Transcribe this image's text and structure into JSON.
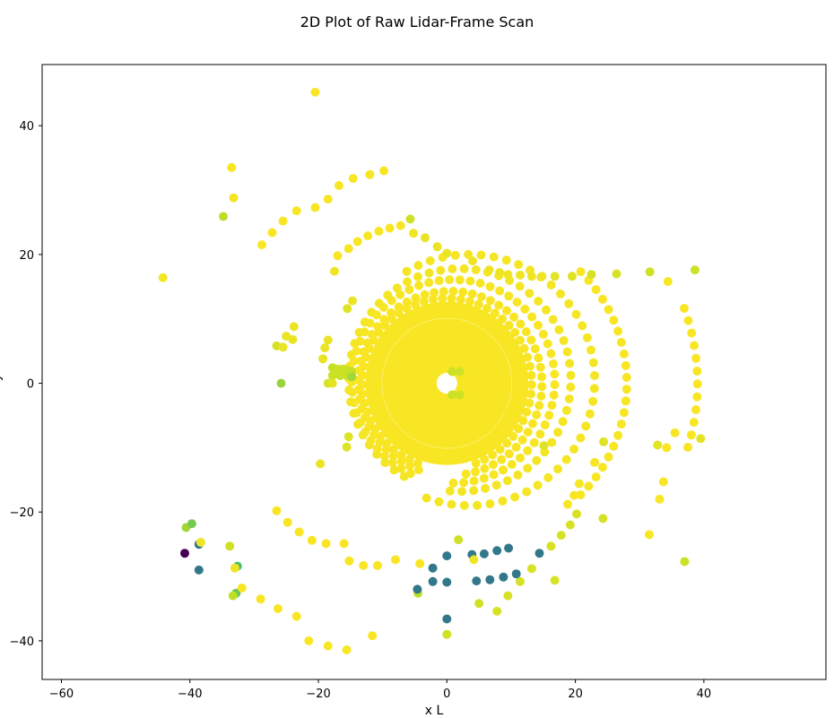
{
  "chart_data": {
    "type": "scatter",
    "title": "2D Plot of Raw Lidar-Frame Scan",
    "xlabel": "x L",
    "ylabel": "y L",
    "xlim": [
      -63,
      59
    ],
    "ylim": [
      -46,
      49.5
    ],
    "xticks": [
      -60,
      -40,
      -20,
      0,
      20,
      40
    ],
    "yticks": [
      -40,
      -20,
      0,
      20,
      40
    ],
    "xtick_labels": [
      "−60",
      "−40",
      "−20",
      "0",
      "20",
      "40"
    ],
    "ytick_labels": [
      "−40",
      "−20",
      "0",
      "20",
      "40"
    ],
    "grid": false,
    "colormap": [
      "#440154",
      "#31688e",
      "#35b779",
      "#bddf26",
      "#fde725"
    ],
    "dense_rings": [
      {
        "cx": 0,
        "cy": 0,
        "r": 2.3,
        "density": 16
      },
      {
        "cx": 0,
        "cy": 0,
        "r": 3.4,
        "density": 22
      },
      {
        "cx": 0,
        "cy": 0,
        "r": 4.6,
        "density": 28
      },
      {
        "cx": 0,
        "cy": 0,
        "r": 5.8,
        "density": 34
      },
      {
        "cx": 0,
        "cy": 0,
        "r": 7.0,
        "density": 40
      },
      {
        "cx": 0,
        "cy": 0,
        "r": 8.2,
        "density": 46
      },
      {
        "cx": 0,
        "cy": 0,
        "r": 9.4,
        "density": 52
      },
      {
        "cx": 0,
        "cy": 0,
        "r": 10.8,
        "density": 56
      },
      {
        "cx": 0,
        "cy": 0,
        "r": 12.0,
        "density": 60
      }
    ],
    "rings": [
      {
        "cx": 0,
        "cy": 0,
        "r": 13.2,
        "a0": -70,
        "a1": 250,
        "n": 52,
        "c": 0.98
      },
      {
        "cx": 0.5,
        "cy": 0,
        "r": 14.3,
        "a0": -80,
        "a1": 250,
        "n": 56,
        "c": 0.98
      },
      {
        "cx": 1,
        "cy": 0.3,
        "r": 15.8,
        "a0": -90,
        "a1": 245,
        "n": 58,
        "c": 0.98
      },
      {
        "cx": 2,
        "cy": 0.5,
        "r": 17.3,
        "a0": -95,
        "a1": 240,
        "n": 56,
        "c": 0.97
      },
      {
        "cx": 3.5,
        "cy": 0.5,
        "r": 19.5,
        "a0": -110,
        "a1": 120,
        "n": 40,
        "c": 0.97
      },
      {
        "cx": 3.5,
        "cy": 0,
        "r": 24.5,
        "a0": -45,
        "a1": 45,
        "n": 22,
        "c": 0.98
      },
      {
        "cx": 5,
        "cy": 0,
        "r": 34.0,
        "a0": -17,
        "a1": 20,
        "n": 12,
        "c": 0.98
      }
    ],
    "points": [
      {
        "x": -20.5,
        "y": 45.2,
        "c": 0.98
      },
      {
        "x": -44.2,
        "y": 16.4,
        "c": 0.96
      },
      {
        "x": -33.5,
        "y": 33.5,
        "c": 0.98
      },
      {
        "x": -33.2,
        "y": 28.8,
        "c": 0.96
      },
      {
        "x": -34.8,
        "y": 25.9,
        "c": 0.75
      },
      {
        "x": -28.8,
        "y": 21.5,
        "c": 0.98
      },
      {
        "x": -27.2,
        "y": 23.4,
        "c": 0.98
      },
      {
        "x": -25.5,
        "y": 25.2,
        "c": 0.98
      },
      {
        "x": -23.4,
        "y": 26.8,
        "c": 0.98
      },
      {
        "x": -20.5,
        "y": 27.3,
        "c": 0.98
      },
      {
        "x": -18.5,
        "y": 28.6,
        "c": 0.98
      },
      {
        "x": -16.8,
        "y": 30.7,
        "c": 0.98
      },
      {
        "x": -14.6,
        "y": 31.8,
        "c": 0.98
      },
      {
        "x": -12.0,
        "y": 32.4,
        "c": 0.98
      },
      {
        "x": -9.8,
        "y": 33.0,
        "c": 0.98
      },
      {
        "x": -17.5,
        "y": 17.4,
        "c": 0.95
      },
      {
        "x": -17.0,
        "y": 19.8,
        "c": 0.98
      },
      {
        "x": -15.3,
        "y": 20.9,
        "c": 0.98
      },
      {
        "x": -13.9,
        "y": 22.0,
        "c": 0.98
      },
      {
        "x": -12.3,
        "y": 22.9,
        "c": 0.98
      },
      {
        "x": -10.6,
        "y": 23.6,
        "c": 0.98
      },
      {
        "x": -8.9,
        "y": 24.1,
        "c": 0.98
      },
      {
        "x": -7.2,
        "y": 24.5,
        "c": 0.98
      },
      {
        "x": -5.7,
        "y": 25.5,
        "c": 0.82
      },
      {
        "x": -5.2,
        "y": 23.3,
        "c": 0.95
      },
      {
        "x": -3.4,
        "y": 22.6,
        "c": 0.92
      },
      {
        "x": -1.5,
        "y": 21.2,
        "c": 0.92
      },
      {
        "x": 0.0,
        "y": 20.2,
        "c": 0.92
      },
      {
        "x": -25.8,
        "y": 0.0,
        "c": 0.68
      },
      {
        "x": -26.5,
        "y": 5.8,
        "c": 0.85
      },
      {
        "x": -25.5,
        "y": 5.6,
        "c": 0.92
      },
      {
        "x": -25.0,
        "y": 7.3,
        "c": 0.92
      },
      {
        "x": -24.0,
        "y": 6.8,
        "c": 0.92
      },
      {
        "x": -23.8,
        "y": 8.8,
        "c": 0.92
      },
      {
        "x": -19.7,
        "y": -12.5,
        "c": 0.92
      },
      {
        "x": -15.5,
        "y": 11.6,
        "c": 0.88
      },
      {
        "x": -14.7,
        "y": 12.8,
        "c": 0.92
      },
      {
        "x": -17.8,
        "y": 2.4,
        "c": 0.78
      },
      {
        "x": -17.0,
        "y": 2.2,
        "c": 0.8
      },
      {
        "x": -16.2,
        "y": 2.2,
        "c": 0.8
      },
      {
        "x": -15.4,
        "y": 2.0,
        "c": 0.8
      },
      {
        "x": -14.8,
        "y": 1.8,
        "c": 0.78
      },
      {
        "x": -17.8,
        "y": 1.2,
        "c": 0.8
      },
      {
        "x": -16.6,
        "y": 1.2,
        "c": 0.8
      },
      {
        "x": -15.4,
        "y": 1.2,
        "c": 0.78
      },
      {
        "x": -14.8,
        "y": 1.0,
        "c": 0.7
      },
      {
        "x": -18.5,
        "y": 0.0,
        "c": 0.85
      },
      {
        "x": -17.8,
        "y": 0.0,
        "c": 0.9
      },
      {
        "x": -19.3,
        "y": 3.8,
        "c": 0.92
      },
      {
        "x": -19.0,
        "y": 5.5,
        "c": 0.92
      },
      {
        "x": -18.5,
        "y": 6.7,
        "c": 0.92
      },
      {
        "x": -15.3,
        "y": -8.3,
        "c": 0.88
      },
      {
        "x": -15.6,
        "y": -9.9,
        "c": 0.88
      },
      {
        "x": 2.0,
        "y": 1.8,
        "c": 0.82
      },
      {
        "x": 0.8,
        "y": 1.8,
        "c": 0.82
      },
      {
        "x": 0.8,
        "y": -1.8,
        "c": 0.82
      },
      {
        "x": 2.0,
        "y": -1.8,
        "c": 0.82
      },
      {
        "x": 4.0,
        "y": 19.0,
        "c": 0.95
      },
      {
        "x": 6.6,
        "y": 17.6,
        "c": 0.95
      },
      {
        "x": 8.2,
        "y": 17.2,
        "c": 0.95
      },
      {
        "x": 9.5,
        "y": 16.9,
        "c": 0.95
      },
      {
        "x": 11.4,
        "y": 16.8,
        "c": 0.95
      },
      {
        "x": 13.2,
        "y": 16.6,
        "c": 0.95
      },
      {
        "x": 14.8,
        "y": 16.6,
        "c": 0.95
      },
      {
        "x": 16.8,
        "y": 16.6,
        "c": 0.9
      },
      {
        "x": 19.5,
        "y": 16.6,
        "c": 0.88
      },
      {
        "x": 22.5,
        "y": 16.9,
        "c": 0.85
      },
      {
        "x": 26.4,
        "y": 17.0,
        "c": 0.85
      },
      {
        "x": 31.6,
        "y": 17.3,
        "c": 0.82
      },
      {
        "x": 38.6,
        "y": 17.6,
        "c": 0.8
      },
      {
        "x": 34.4,
        "y": 15.8,
        "c": 0.98
      },
      {
        "x": 32.8,
        "y": -9.6,
        "c": 0.9
      },
      {
        "x": 39.5,
        "y": -8.6,
        "c": 0.9
      },
      {
        "x": 35.5,
        "y": -7.7,
        "c": 0.98
      },
      {
        "x": 34.2,
        "y": -10.0,
        "c": 0.98
      },
      {
        "x": 33.7,
        "y": -15.3,
        "c": 0.98
      },
      {
        "x": 33.1,
        "y": -18.0,
        "c": 0.98
      },
      {
        "x": 31.5,
        "y": -23.5,
        "c": 0.98
      },
      {
        "x": 37.0,
        "y": -27.7,
        "c": 0.8
      },
      {
        "x": 24.3,
        "y": -21.0,
        "c": 0.85
      },
      {
        "x": 20.2,
        "y": -20.3,
        "c": 0.85
      },
      {
        "x": 19.2,
        "y": -22.0,
        "c": 0.85
      },
      {
        "x": 17.8,
        "y": -23.6,
        "c": 0.85
      },
      {
        "x": 16.2,
        "y": -25.3,
        "c": 0.85
      },
      {
        "x": 16.8,
        "y": -30.6,
        "c": 0.85
      },
      {
        "x": 13.2,
        "y": -28.8,
        "c": 0.85
      },
      {
        "x": 11.4,
        "y": -30.8,
        "c": 0.85
      },
      {
        "x": 9.5,
        "y": -33.0,
        "c": 0.85
      },
      {
        "x": 7.8,
        "y": -35.4,
        "c": 0.85
      },
      {
        "x": 5.0,
        "y": -34.2,
        "c": 0.82
      },
      {
        "x": 0.0,
        "y": -39.0,
        "c": 0.82
      },
      {
        "x": -4.5,
        "y": -32.6,
        "c": 0.75
      },
      {
        "x": 24.4,
        "y": -9.1,
        "c": 0.88
      },
      {
        "x": 23.0,
        "y": -12.3,
        "c": 0.98
      },
      {
        "x": 20.6,
        "y": -15.6,
        "c": 0.98
      },
      {
        "x": 19.8,
        "y": -17.4,
        "c": 0.98
      },
      {
        "x": 18.8,
        "y": -18.8,
        "c": 0.98
      },
      {
        "x": 15.1,
        "y": -9.7,
        "c": 0.88
      },
      {
        "x": -4.6,
        "y": -32.0,
        "c": 0.3
      },
      {
        "x": -2.2,
        "y": -28.7,
        "c": 0.3
      },
      {
        "x": -2.2,
        "y": -30.8,
        "c": 0.3
      },
      {
        "x": 0.0,
        "y": -26.8,
        "c": 0.3
      },
      {
        "x": 0.0,
        "y": -30.9,
        "c": 0.3
      },
      {
        "x": 0.0,
        "y": -36.6,
        "c": 0.3
      },
      {
        "x": 3.9,
        "y": -26.6,
        "c": 0.3
      },
      {
        "x": 4.6,
        "y": -30.7,
        "c": 0.3
      },
      {
        "x": 5.8,
        "y": -26.5,
        "c": 0.3
      },
      {
        "x": 6.7,
        "y": -30.5,
        "c": 0.3
      },
      {
        "x": 7.8,
        "y": -26.0,
        "c": 0.3
      },
      {
        "x": 8.8,
        "y": -30.1,
        "c": 0.3
      },
      {
        "x": 9.6,
        "y": -25.6,
        "c": 0.3
      },
      {
        "x": 10.8,
        "y": -29.6,
        "c": 0.3
      },
      {
        "x": 14.4,
        "y": -26.4,
        "c": 0.3
      },
      {
        "x": 4.2,
        "y": -27.4,
        "c": 0.95
      },
      {
        "x": 1.8,
        "y": -24.3,
        "c": 0.82
      },
      {
        "x": -40.8,
        "y": -26.4,
        "c": 0.0
      },
      {
        "x": -38.6,
        "y": -29.0,
        "c": 0.3
      },
      {
        "x": -40.6,
        "y": -22.4,
        "c": 0.7
      },
      {
        "x": -39.7,
        "y": -21.8,
        "c": 0.62
      },
      {
        "x": -38.6,
        "y": -25.0,
        "c": 0.3
      },
      {
        "x": -38.3,
        "y": -24.7,
        "c": 0.95
      },
      {
        "x": -33.8,
        "y": -25.3,
        "c": 0.82
      },
      {
        "x": -32.6,
        "y": -28.4,
        "c": 0.55
      },
      {
        "x": -33.0,
        "y": -28.7,
        "c": 0.95
      },
      {
        "x": -32.8,
        "y": -32.6,
        "c": 0.6
      },
      {
        "x": -33.3,
        "y": -33.0,
        "c": 0.75
      },
      {
        "x": -31.9,
        "y": -31.8,
        "c": 0.98
      },
      {
        "x": -29.0,
        "y": -33.5,
        "c": 0.98
      },
      {
        "x": -26.3,
        "y": -35.0,
        "c": 0.98
      },
      {
        "x": -23.4,
        "y": -36.2,
        "c": 0.98
      },
      {
        "x": -21.5,
        "y": -40.0,
        "c": 0.98
      },
      {
        "x": -18.5,
        "y": -40.8,
        "c": 0.98
      },
      {
        "x": -15.6,
        "y": -41.4,
        "c": 0.98
      },
      {
        "x": -11.6,
        "y": -39.2,
        "c": 0.98
      },
      {
        "x": -26.5,
        "y": -19.8,
        "c": 0.98
      },
      {
        "x": -24.8,
        "y": -21.6,
        "c": 0.98
      },
      {
        "x": -23.0,
        "y": -23.1,
        "c": 0.98
      },
      {
        "x": -21.0,
        "y": -24.4,
        "c": 0.98
      },
      {
        "x": -18.8,
        "y": -24.9,
        "c": 0.98
      },
      {
        "x": -16.0,
        "y": -24.9,
        "c": 0.98
      },
      {
        "x": -15.2,
        "y": -27.6,
        "c": 0.98
      },
      {
        "x": -13.0,
        "y": -28.3,
        "c": 0.98
      },
      {
        "x": -10.8,
        "y": -28.3,
        "c": 0.98
      },
      {
        "x": -8.0,
        "y": -27.4,
        "c": 0.98
      },
      {
        "x": -4.2,
        "y": -28.0,
        "c": 0.98
      }
    ]
  }
}
